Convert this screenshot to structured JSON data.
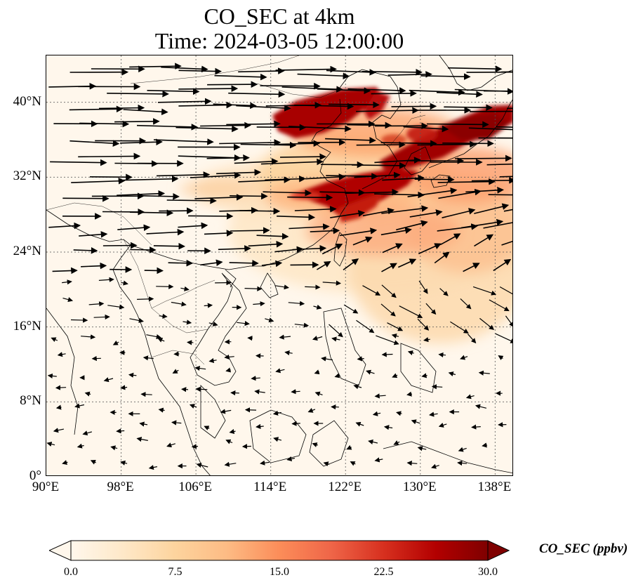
{
  "title": {
    "line1": "CO_SEC at 4km",
    "line2": "Time: 2024-03-05 12:00:00"
  },
  "map": {
    "extent": {
      "lon_min": 90,
      "lon_max": 140,
      "lat_min": 0,
      "lat_max": 45
    },
    "lat_ticks": [
      {
        "value": 0,
        "label": "0°"
      },
      {
        "value": 8,
        "label": "8°N"
      },
      {
        "value": 16,
        "label": "16°N"
      },
      {
        "value": 24,
        "label": "24°N"
      },
      {
        "value": 32,
        "label": "32°N"
      },
      {
        "value": 40,
        "label": "40°N"
      }
    ],
    "lon_ticks": [
      {
        "value": 90,
        "label": "90°E"
      },
      {
        "value": 98,
        "label": "98°E"
      },
      {
        "value": 106,
        "label": "106°E"
      },
      {
        "value": 114,
        "label": "114°E"
      },
      {
        "value": 122,
        "label": "122°E"
      },
      {
        "value": 130,
        "label": "130°E"
      },
      {
        "value": 138,
        "label": "138°E"
      }
    ],
    "gridlines": true,
    "wind_vectors": "black arrows, predominantly westerly/eastward north of 20°N, weak and variable in the tropics",
    "concentration_plumes": [
      {
        "description": "high CO_SEC band over North China / Bohai",
        "lon": [
          115,
          126
        ],
        "lat": [
          38,
          41.5
        ],
        "level": "high"
      },
      {
        "description": "high CO_SEC band over Korea to Japan",
        "lon": [
          122,
          140
        ],
        "lat": [
          33,
          40
        ],
        "level": "high"
      },
      {
        "description": "high CO_SEC band over East China Sea",
        "lon": [
          111,
          131
        ],
        "lat": [
          27,
          32.5
        ],
        "level": "high"
      },
      {
        "description": "moderate background over eastern China and western Pacific",
        "lon": [
          100,
          140
        ],
        "lat": [
          17,
          40
        ],
        "level": "moderate"
      }
    ]
  },
  "colorbar": {
    "label": "CO_SEC (ppbv)",
    "min": 0,
    "max": 30,
    "ticks": [
      "0.0",
      "7.5",
      "15.0",
      "22.5",
      "30.0"
    ],
    "colors": [
      "#fff7ec",
      "#fee8c8",
      "#fdd49e",
      "#fdbb84",
      "#fc8d59",
      "#ef6548",
      "#d7301f",
      "#b30000",
      "#7f0000"
    ],
    "extend": "both"
  }
}
